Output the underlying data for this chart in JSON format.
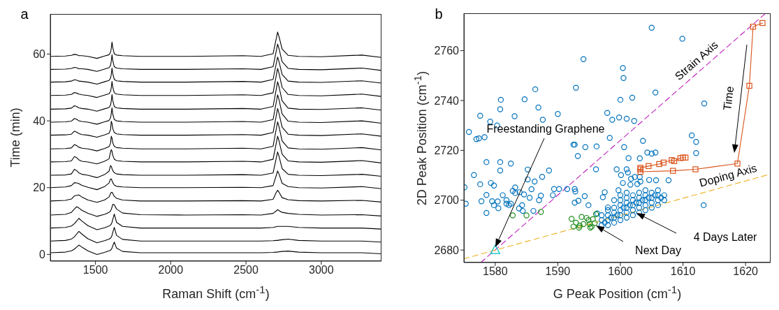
{
  "chart_data": [
    {
      "type": "line",
      "xlabel": "Raman Shift (cm$^{-1}$)",
      "ylabel": "Time (min)",
      "annotations": [
        "a"
      ],
      "xlim": [
        1200,
        3400
      ],
      "ylim": [
        -2,
        72
      ],
      "xticks": [
        1500,
        2000,
        2500,
        3000
      ],
      "yticks": [
        0,
        20,
        40,
        60
      ],
      "x": [
        1200,
        1300,
        1340,
        1360,
        1375,
        1390,
        1410,
        1450,
        1510,
        1560,
        1590,
        1600,
        1605,
        1610,
        1615,
        1625,
        1640,
        1680,
        1800,
        2100,
        2480,
        2600,
        2680,
        2700,
        2710,
        2720,
        2740,
        2780,
        2850,
        3000,
        3270,
        3400
      ],
      "series": [
        {
          "color": "#000000",
          "values": [
            0.5,
            0.7,
            1.1,
            1.6,
            2.2,
            2.8,
            2.2,
            1.1,
            0.0,
            0.6,
            1.1,
            1.3,
            1.5,
            1.9,
            2.6,
            3.7,
            1.9,
            0.9,
            0.5,
            0.5,
            0.5,
            0.5,
            0.6,
            0.7,
            0.7,
            0.8,
            0.9,
            1.0,
            0.7,
            0.5,
            0.5,
            0.2
          ]
        },
        {
          "color": "#000000",
          "values": [
            4.0,
            4.2,
            4.6,
            5.3,
            6.1,
            6.9,
            6.1,
            4.7,
            3.5,
            4.1,
            4.6,
            4.9,
            5.2,
            5.7,
            6.6,
            8.1,
            5.7,
            4.5,
            4.0,
            4.0,
            4.0,
            4.0,
            4.1,
            4.2,
            4.2,
            4.3,
            4.4,
            4.6,
            4.2,
            4.0,
            4.0,
            3.7
          ]
        },
        {
          "color": "#000000",
          "values": [
            7.9,
            8.1,
            8.5,
            9.2,
            10.0,
            10.8,
            10.0,
            8.6,
            7.4,
            8.0,
            8.5,
            8.8,
            9.1,
            9.6,
            10.5,
            12.1,
            9.6,
            8.4,
            7.9,
            7.9,
            7.9,
            7.9,
            8.1,
            8.3,
            8.4,
            8.4,
            8.4,
            8.4,
            8.1,
            7.9,
            7.9,
            7.6
          ]
        },
        {
          "color": "#000000",
          "values": [
            11.8,
            12.0,
            12.6,
            13.6,
            14.3,
            13.9,
            13.2,
            12.3,
            11.4,
            12.0,
            12.6,
            13.0,
            13.5,
            14.2,
            15.0,
            14.9,
            13.6,
            12.4,
            11.9,
            11.8,
            11.9,
            11.8,
            12.3,
            13.0,
            13.4,
            13.1,
            12.6,
            12.3,
            12.0,
            11.8,
            11.9,
            11.5
          ]
        },
        {
          "color": "#000000",
          "values": [
            16.0,
            16.2,
            16.6,
            17.5,
            17.7,
            17.8,
            17.2,
            16.3,
            15.6,
            16.3,
            17.2,
            18.2,
            18.6,
            18.6,
            18.3,
            17.4,
            16.8,
            16.3,
            16.0,
            16.0,
            16.1,
            16.0,
            16.5,
            18.5,
            19.2,
            18.6,
            17.0,
            16.4,
            16.1,
            16.0,
            16.2,
            15.7
          ]
        },
        {
          "color": "#000000",
          "values": [
            20.0,
            20.2,
            20.6,
            21.5,
            21.4,
            21.2,
            20.7,
            20.1,
            19.4,
            20.3,
            21.4,
            22.6,
            22.6,
            22.1,
            21.5,
            20.8,
            20.4,
            20.2,
            20.0,
            20.0,
            20.1,
            20.0,
            20.6,
            23.5,
            25.0,
            24.0,
            21.3,
            20.3,
            20.0,
            19.9,
            20.3,
            19.7
          ]
        },
        {
          "color": "#000000",
          "values": [
            23.7,
            23.8,
            24.1,
            25.5,
            25.1,
            24.4,
            24.0,
            23.7,
            23.0,
            23.9,
            24.9,
            26.6,
            26.4,
            25.7,
            25.1,
            24.5,
            24.1,
            23.9,
            23.7,
            23.7,
            23.9,
            23.7,
            24.4,
            28.6,
            30.7,
            29.3,
            25.7,
            24.0,
            23.7,
            23.6,
            24.0,
            23.4
          ]
        },
        {
          "color": "#000000",
          "values": [
            27.7,
            27.8,
            28.0,
            29.3,
            29.0,
            28.3,
            27.9,
            27.7,
            27.1,
            27.9,
            28.6,
            30.6,
            31.4,
            30.9,
            29.7,
            28.5,
            28.1,
            27.9,
            27.7,
            27.7,
            27.9,
            27.7,
            28.5,
            33.1,
            35.4,
            33.9,
            30.0,
            28.0,
            27.7,
            27.6,
            28.1,
            27.4
          ]
        },
        {
          "color": "#000000",
          "values": [
            31.6,
            31.7,
            31.9,
            32.9,
            32.6,
            32.1,
            31.8,
            31.6,
            31.0,
            31.7,
            32.3,
            33.3,
            35.4,
            34.8,
            33.4,
            32.4,
            32.0,
            31.8,
            31.6,
            31.6,
            31.8,
            31.6,
            32.4,
            37.3,
            39.7,
            38.1,
            34.0,
            31.9,
            31.6,
            31.5,
            32.0,
            31.3
          ]
        },
        {
          "color": "#000000",
          "values": [
            35.7,
            35.8,
            36.0,
            36.9,
            36.6,
            36.2,
            35.9,
            35.7,
            35.1,
            35.8,
            36.3,
            37.3,
            39.9,
            39.2,
            37.7,
            36.5,
            36.1,
            35.9,
            35.7,
            35.7,
            35.9,
            35.7,
            36.5,
            41.3,
            43.7,
            42.1,
            38.1,
            36.0,
            35.7,
            35.6,
            36.1,
            35.4
          ]
        },
        {
          "color": "#000000",
          "values": [
            39.6,
            39.7,
            39.9,
            40.7,
            40.5,
            40.0,
            39.8,
            39.6,
            39.0,
            39.7,
            40.1,
            40.9,
            42.2,
            43.9,
            42.0,
            40.4,
            40.0,
            39.8,
            39.6,
            39.6,
            39.8,
            39.6,
            40.4,
            45.3,
            47.8,
            46.2,
            42.1,
            39.9,
            39.6,
            39.5,
            40.0,
            39.3
          ]
        },
        {
          "color": "#000000",
          "values": [
            43.5,
            43.6,
            43.8,
            44.5,
            44.3,
            43.9,
            43.7,
            43.5,
            42.9,
            43.6,
            44.0,
            44.7,
            45.9,
            47.9,
            46.1,
            44.3,
            43.9,
            43.7,
            43.5,
            43.5,
            43.7,
            43.5,
            44.3,
            49.2,
            51.7,
            50.1,
            46.0,
            43.8,
            43.5,
            43.4,
            43.9,
            43.2
          ]
        },
        {
          "color": "#000000",
          "values": [
            47.6,
            47.7,
            47.9,
            48.5,
            48.3,
            48.0,
            47.8,
            47.6,
            47.0,
            47.7,
            48.1,
            48.8,
            49.9,
            51.8,
            50.1,
            48.4,
            48.0,
            47.8,
            47.6,
            47.6,
            47.8,
            47.6,
            48.4,
            53.3,
            55.7,
            54.1,
            50.0,
            47.9,
            47.6,
            47.5,
            48.0,
            47.3
          ]
        },
        {
          "color": "#000000",
          "values": [
            51.6,
            51.7,
            51.9,
            52.3,
            52.2,
            51.9,
            51.8,
            51.6,
            51.0,
            51.7,
            52.1,
            52.8,
            53.9,
            55.8,
            54.1,
            52.4,
            52.0,
            51.8,
            51.6,
            51.6,
            51.8,
            51.6,
            52.4,
            56.9,
            59.1,
            57.6,
            53.9,
            51.9,
            51.6,
            51.5,
            52.0,
            51.3
          ]
        },
        {
          "color": "#000000",
          "values": [
            55.4,
            55.5,
            55.7,
            56.0,
            55.9,
            55.6,
            55.6,
            55.4,
            54.8,
            55.5,
            55.9,
            56.6,
            57.8,
            59.8,
            58.0,
            56.2,
            55.8,
            55.6,
            55.4,
            55.4,
            55.6,
            55.4,
            56.2,
            60.7,
            63.0,
            61.5,
            57.7,
            55.7,
            55.4,
            55.3,
            55.8,
            55.1
          ]
        },
        {
          "color": "#000000",
          "values": [
            59.3,
            59.4,
            59.6,
            59.9,
            59.8,
            59.5,
            59.5,
            59.3,
            58.7,
            59.4,
            59.8,
            60.5,
            61.7,
            63.6,
            61.9,
            60.1,
            59.7,
            59.5,
            59.3,
            59.3,
            59.5,
            59.3,
            60.1,
            64.4,
            66.6,
            65.1,
            61.5,
            59.6,
            59.3,
            59.2,
            59.7,
            59.0
          ]
        }
      ]
    },
    {
      "type": "scatter",
      "xlabel": "G Peak Position (cm$^{-1}$)",
      "ylabel": "2D Peak Position (cm$^{-1}$)",
      "annotations": [
        "b",
        "Freestanding Graphene",
        "Next Day",
        "4 Days Later",
        "Time"
      ],
      "xlim": [
        1575,
        1624
      ],
      "ylim": [
        2675,
        2775
      ],
      "xticks": [
        1580,
        1590,
        1600,
        1610,
        1620
      ],
      "yticks": [
        2680,
        2700,
        2720,
        2740,
        2760
      ],
      "series": [
        {
          "type": "scatter",
          "color": "#0072bd",
          "marker": "circle",
          "x": [
            1575.8,
            1577.0,
            1577.4,
            1577.6,
            1578.3,
            1579.2,
            1580.3,
            1580.8,
            1580.9,
            1583.1,
            1584.7,
            1586.4,
            1586.9,
            1587.6,
            1590.0,
            1592.5,
            1592.7,
            1592.9,
            1593.2,
            1594.1,
            1594.4,
            1596.2,
            1597.9,
            1598.3,
            1598.7,
            1599.8,
            1600.0,
            1600.4,
            1600.5,
            1600.6,
            1601.0,
            1601.3,
            1601.9,
            1602.2,
            1603.1,
            1603.6,
            1604.3,
            1605.0,
            1605.0,
            1605.6,
            1605.6,
            1609.9,
            1611.4,
            1612.1,
            1612.1,
            1613.4,
            1575.1,
            1575.3,
            1576.6,
            1577.6,
            1577.8,
            1578.6,
            1578.6,
            1578.6,
            1579.3,
            1579.5,
            1579.8,
            1579.8,
            1580.4,
            1580.5,
            1580.8,
            1580.8,
            1581.2,
            1581.8,
            1581.8,
            1582.2,
            1582.5,
            1582.5,
            1582.8,
            1583.2,
            1583.2,
            1583.8,
            1583.9,
            1584.3,
            1584.4,
            1584.6,
            1585.2,
            1585.2,
            1585.5,
            1585.8,
            1586.1,
            1586.3,
            1587.0,
            1587.3,
            1587.5,
            1588.6,
            1589.2,
            1589.4,
            1590.2,
            1591.5,
            1592.7,
            1592.8,
            1592.7,
            1593.3,
            1594.3,
            1594.9,
            1596.1,
            1596.3,
            1597.2,
            1597.5,
            1598.0,
            1599.4,
            1599.7,
            1600.1,
            1600.4,
            1601.0,
            1601.2,
            1601.7,
            1601.6,
            1602.3,
            1602.7,
            1603.1,
            1603.2,
            1604.6,
            1605.7,
            1607.7,
            1613.3,
            1597,
            1597,
            1597,
            1598,
            1598,
            1598,
            1598,
            1599,
            1599,
            1599,
            1599,
            1599,
            1600,
            1600,
            1600,
            1600,
            1600,
            1600,
            1601,
            1601,
            1601,
            1601,
            1601,
            1601,
            1602,
            1602,
            1602,
            1602,
            1602,
            1603,
            1603,
            1603,
            1603,
            1603,
            1604,
            1604,
            1604,
            1604,
            1604,
            1605,
            1605,
            1605,
            1605,
            1606,
            1606,
            1606,
            1606,
            1607,
            1607,
            1597.5,
            1598.5,
            1599.5,
            1600.5,
            1601.5,
            1602.5,
            1603.5,
            1604.5,
            1605.5,
            1606.5
          ],
          "values": [
            2727.4,
            2724.5,
            2724.8,
            2733.9,
            2725.3,
            2731.5,
            2730.0,
            2736.5,
            2740.3,
            2733.7,
            2740.5,
            2744.5,
            2737.2,
            2732.3,
            2734.6,
            2722.3,
            2722.3,
            2745.1,
            2717.7,
            2756.6,
            2721.3,
            2721.6,
            2735.0,
            2725.0,
            2732.3,
            2733.2,
            2740.3,
            2753.0,
            2749.0,
            2721.3,
            2732.7,
            2716.9,
            2741.1,
            2731.8,
            2716.8,
            2723.8,
            2719.1,
            2718.7,
            2769.2,
            2719.1,
            2743.2,
            2764.8,
            2726.0,
            2723.4,
            2718.9,
            2738.8,
            2705.2,
            2698.6,
            2710.1,
            2706.4,
            2699.6,
            2715.3,
            2702.1,
            2694.9,
            2706.9,
            2699.6,
            2705.9,
            2698.0,
            2699.5,
            2696.8,
            2715.3,
            2711.9,
            2702.0,
            2700.0,
            2698.6,
            2698.0,
            2714.7,
            2698.6,
            2703.7,
            2705.1,
            2702.9,
            2696.7,
            2703.2,
            2698.0,
            2695.7,
            2702.3,
            2712.3,
            2708.3,
            2701.0,
            2704.4,
            2695.7,
            2707.5,
            2700.0,
            2701.8,
            2709.4,
            2711.9,
            2702.0,
            2704.5,
            2704.5,
            2704.5,
            2704.5,
            2703.5,
            2699.0,
            2699.8,
            2701.6,
            2698.0,
            2712.4,
            2694.7,
            2701.2,
            2703.2,
            2697.1,
            2712.4,
            2704.0,
            2710.1,
            2706.9,
            2712.4,
            2711.1,
            2708.6,
            2706.2,
            2709.3,
            2706.5,
            2709.3,
            2707.5,
            2708.1,
            2708.0,
            2708.0,
            2698.0,
            2690,
            2692,
            2694,
            2690,
            2692,
            2694,
            2696,
            2691,
            2693,
            2695,
            2697,
            2700,
            2692,
            2694,
            2696,
            2698,
            2700,
            2702,
            2693,
            2695,
            2697,
            2699,
            2701,
            2703,
            2694,
            2696,
            2698,
            2700,
            2702,
            2695,
            2697,
            2699,
            2701,
            2703,
            2696,
            2698,
            2700,
            2702,
            2704,
            2697,
            2699,
            2701,
            2703,
            2698,
            2700,
            2702,
            2704,
            2700,
            2702,
            2691,
            2693,
            2694,
            2697,
            2698,
            2699,
            2700,
            2701,
            2702,
            2701
          ]
        },
        {
          "type": "scatter",
          "color": "#1e8c1e",
          "marker": "circle",
          "x": [
            1582.8,
            1585.0,
            1587.3,
            1592.2,
            1592.5,
            1592.9,
            1593.4,
            1593.8,
            1594.1,
            1594.6,
            1594.9,
            1595.1,
            1595.4,
            1595.6,
            1595.9,
            1596.1,
            1595.2,
            1593.5
          ],
          "values": [
            2693.9,
            2693.9,
            2695.3,
            2692.5,
            2689.4,
            2691.0,
            2689.0,
            2693.3,
            2690.4,
            2692.9,
            2692.0,
            2690.5,
            2689.4,
            2692.4,
            2690.8,
            2694.4,
            2689.0,
            2689.8
          ]
        },
        {
          "type": "line",
          "color": "#d95319",
          "marker": "square",
          "x": [
            1622.7,
            1621.2,
            1620.6,
            1618.7,
            1612.0,
            1608.4,
            1603.2,
            1603.2,
            1603.2,
            1604.5,
            1606.2,
            1606.9,
            1608.2,
            1608.6,
            1609.6,
            1610.0,
            1610.4
          ],
          "values": [
            2771.1,
            2769.6,
            2745.9,
            2714.7,
            2712.4,
            2711.8,
            2711.4,
            2712.4,
            2713.0,
            2713.7,
            2714.5,
            2715.1,
            2716.1,
            2715.7,
            2716.9,
            2717.1,
            2717.1
          ]
        },
        {
          "type": "scatter",
          "color": "#00bfbf",
          "marker": "triangle",
          "x": [
            1580
          ],
          "values": [
            2680
          ]
        },
        {
          "type": "line",
          "name": "Strain Axis",
          "color": "#c020c0",
          "line_style": "dashed",
          "x": [
            1577.7,
            1623.2
          ],
          "values": [
            2675,
            2775
          ]
        },
        {
          "type": "line",
          "name": "Doping Axis",
          "color": "#edb120",
          "line_style": "dashed",
          "x": [
            1575,
            1624
          ],
          "values": [
            2676.5,
            2710.5
          ]
        }
      ]
    }
  ]
}
